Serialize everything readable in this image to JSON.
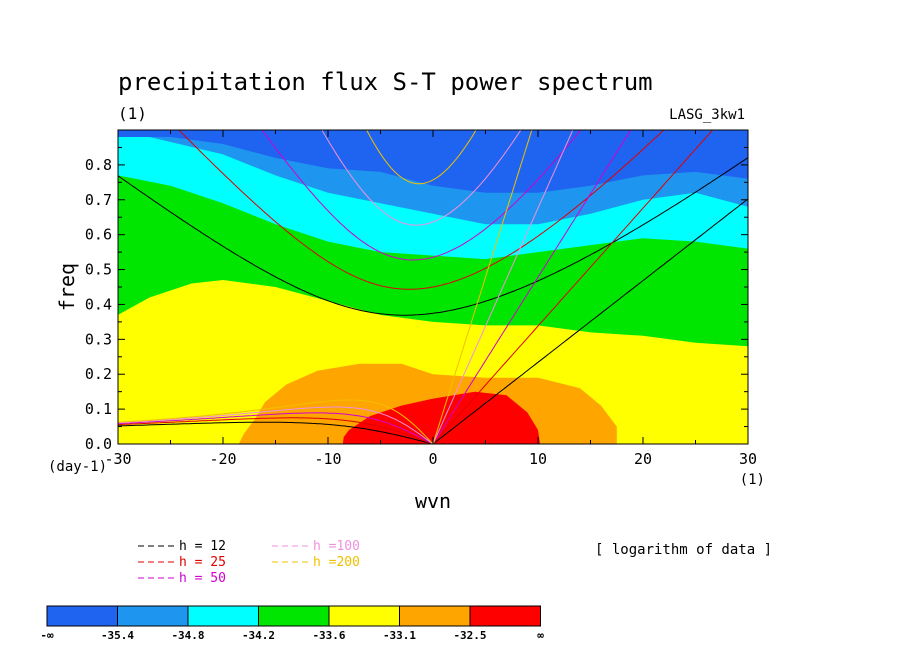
{
  "chart_data": {
    "type": "heatmap",
    "title": "precipitation flux S-T power spectrum",
    "units_label": "(1)",
    "experiment_label": "LASG_3kw1",
    "xlabel": "wvn",
    "ylabel": "freq",
    "x_unit_label": "(1)",
    "y_unit_label": "(day-1)",
    "xlim": [
      -30,
      30
    ],
    "ylim": [
      0,
      0.9
    ],
    "x_ticks": [
      "-30",
      "-20",
      "-10",
      "0",
      "10",
      "20",
      "30"
    ],
    "y_ticks": [
      "0.0",
      "0.1",
      "0.2",
      "0.3",
      "0.4",
      "0.5",
      "0.6",
      "0.7",
      "0.8"
    ],
    "note": "[ logarithm of data ]",
    "colorbar": {
      "labels": [
        "-∞",
        "-35.4",
        "-34.8",
        "-34.2",
        "-33.6",
        "-33.1",
        "-32.5",
        "∞"
      ],
      "colors": [
        "#1e64f0",
        "#1e96f0",
        "#00ffff",
        "#00e600",
        "#ffff00",
        "#ffa500",
        "#ff0000"
      ]
    },
    "contour_levels": [
      -35.4,
      -34.8,
      -34.2,
      -33.6,
      -33.1,
      -32.5
    ],
    "dispersion_curves": [
      {
        "label": "h = 12",
        "h": 12,
        "color": "#000000"
      },
      {
        "label": "h = 25",
        "h": 25,
        "color": "#e00000"
      },
      {
        "label": "h = 50",
        "h": 50,
        "color": "#d000d0"
      },
      {
        "label": "h =100",
        "h": 100,
        "color": "#f090e0"
      },
      {
        "label": "h =200",
        "h": 200,
        "color": "#f0c000"
      }
    ]
  }
}
